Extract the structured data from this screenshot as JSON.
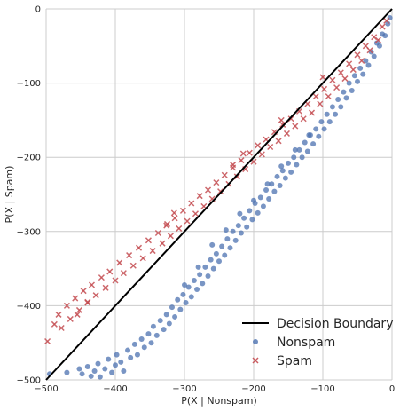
{
  "chart_data": {
    "type": "scatter",
    "title": "",
    "xlabel": "P(X | Nonspam)",
    "ylabel": "P(X | Spam)",
    "xlim": [
      -500,
      0
    ],
    "ylim": [
      -500,
      0
    ],
    "xticks": [
      -500,
      -400,
      -300,
      -200,
      -100,
      0
    ],
    "yticks": [
      -500,
      -400,
      -300,
      -200,
      -100,
      0
    ],
    "xtick_labels": [
      "−500",
      "−400",
      "−300",
      "−200",
      "−100",
      "0"
    ],
    "ytick_labels": [
      "−500",
      "−400",
      "−300",
      "−200",
      "−100",
      "0"
    ],
    "grid": true,
    "legend_position": "bottom-right",
    "legend": [
      "Decision Boundary",
      "Nonspam",
      "Spam"
    ],
    "decision_boundary": {
      "name": "Decision Boundary",
      "color": "#000000",
      "x": [
        -500,
        0
      ],
      "y": [
        -500,
        0
      ]
    },
    "series": [
      {
        "name": "Nonspam",
        "marker": "circle",
        "color": "#4c72b0",
        "points": [
          [
            -495,
            -492
          ],
          [
            -470,
            -490
          ],
          [
            -452,
            -485
          ],
          [
            -448,
            -492
          ],
          [
            -440,
            -482
          ],
          [
            -435,
            -495
          ],
          [
            -430,
            -488
          ],
          [
            -425,
            -478
          ],
          [
            -422,
            -496
          ],
          [
            -415,
            -485
          ],
          [
            -410,
            -472
          ],
          [
            -405,
            -490
          ],
          [
            -400,
            -480
          ],
          [
            -398,
            -466
          ],
          [
            -392,
            -476
          ],
          [
            -388,
            -488
          ],
          [
            -382,
            -460
          ],
          [
            -378,
            -470
          ],
          [
            -372,
            -452
          ],
          [
            -368,
            -466
          ],
          [
            -362,
            -445
          ],
          [
            -358,
            -456
          ],
          [
            -352,
            -438
          ],
          [
            -348,
            -450
          ],
          [
            -345,
            -428
          ],
          [
            -340,
            -440
          ],
          [
            -335,
            -420
          ],
          [
            -330,
            -432
          ],
          [
            -326,
            -412
          ],
          [
            -322,
            -424
          ],
          [
            -318,
            -402
          ],
          [
            -314,
            -415
          ],
          [
            -310,
            -392
          ],
          [
            -306,
            -405
          ],
          [
            -302,
            -385
          ],
          [
            -298,
            -396
          ],
          [
            -294,
            -375
          ],
          [
            -290,
            -388
          ],
          [
            -286,
            -366
          ],
          [
            -282,
            -378
          ],
          [
            -278,
            -358
          ],
          [
            -274,
            -370
          ],
          [
            -270,
            -348
          ],
          [
            -266,
            -360
          ],
          [
            -262,
            -338
          ],
          [
            -258,
            -350
          ],
          [
            -254,
            -330
          ],
          [
            -250,
            -340
          ],
          [
            -246,
            -320
          ],
          [
            -242,
            -332
          ],
          [
            -238,
            -310
          ],
          [
            -234,
            -322
          ],
          [
            -230,
            -300
          ],
          [
            -226,
            -312
          ],
          [
            -222,
            -292
          ],
          [
            -218,
            -302
          ],
          [
            -214,
            -282
          ],
          [
            -210,
            -294
          ],
          [
            -206,
            -272
          ],
          [
            -202,
            -284
          ],
          [
            -198,
            -262
          ],
          [
            -194,
            -275
          ],
          [
            -190,
            -254
          ],
          [
            -186,
            -266
          ],
          [
            -182,
            -244
          ],
          [
            -178,
            -256
          ],
          [
            -174,
            -236
          ],
          [
            -170,
            -246
          ],
          [
            -166,
            -226
          ],
          [
            -162,
            -238
          ],
          [
            -158,
            -218
          ],
          [
            -154,
            -228
          ],
          [
            -150,
            -208
          ],
          [
            -146,
            -220
          ],
          [
            -142,
            -200
          ],
          [
            -138,
            -210
          ],
          [
            -134,
            -190
          ],
          [
            -130,
            -200
          ],
          [
            -126,
            -180
          ],
          [
            -122,
            -192
          ],
          [
            -118,
            -170
          ],
          [
            -114,
            -182
          ],
          [
            -110,
            -162
          ],
          [
            -106,
            -172
          ],
          [
            -102,
            -152
          ],
          [
            -98,
            -162
          ],
          [
            -94,
            -142
          ],
          [
            -90,
            -152
          ],
          [
            -86,
            -132
          ],
          [
            -82,
            -142
          ],
          [
            -78,
            -122
          ],
          [
            -74,
            -132
          ],
          [
            -70,
            -112
          ],
          [
            -66,
            -120
          ],
          [
            -62,
            -100
          ],
          [
            -58,
            -110
          ],
          [
            -54,
            -90
          ],
          [
            -50,
            -98
          ],
          [
            -46,
            -80
          ],
          [
            -42,
            -88
          ],
          [
            -38,
            -70
          ],
          [
            -34,
            -76
          ],
          [
            -30,
            -58
          ],
          [
            -26,
            -64
          ],
          [
            -22,
            -46
          ],
          [
            -18,
            -50
          ],
          [
            -14,
            -34
          ],
          [
            -10,
            -36
          ],
          [
            -6,
            -20
          ],
          [
            -3,
            -12
          ],
          [
            -300,
            -372
          ],
          [
            -280,
            -348
          ],
          [
            -260,
            -318
          ],
          [
            -240,
            -298
          ],
          [
            -220,
            -276
          ],
          [
            -200,
            -258
          ],
          [
            -180,
            -236
          ],
          [
            -160,
            -212
          ],
          [
            -140,
            -190
          ],
          [
            -120,
            -170
          ]
        ]
      },
      {
        "name": "Spam",
        "marker": "x",
        "color": "#c44e52",
        "points": [
          [
            -498,
            -448
          ],
          [
            -488,
            -425
          ],
          [
            -482,
            -412
          ],
          [
            -478,
            -430
          ],
          [
            -470,
            -400
          ],
          [
            -465,
            -418
          ],
          [
            -458,
            -390
          ],
          [
            -452,
            -406
          ],
          [
            -446,
            -380
          ],
          [
            -440,
            -396
          ],
          [
            -434,
            -372
          ],
          [
            -428,
            -386
          ],
          [
            -420,
            -362
          ],
          [
            -414,
            -376
          ],
          [
            -408,
            -354
          ],
          [
            -400,
            -366
          ],
          [
            -394,
            -342
          ],
          [
            -388,
            -356
          ],
          [
            -380,
            -332
          ],
          [
            -374,
            -346
          ],
          [
            -366,
            -322
          ],
          [
            -360,
            -336
          ],
          [
            -352,
            -312
          ],
          [
            -346,
            -326
          ],
          [
            -338,
            -302
          ],
          [
            -332,
            -316
          ],
          [
            -326,
            -292
          ],
          [
            -320,
            -306
          ],
          [
            -314,
            -282
          ],
          [
            -308,
            -296
          ],
          [
            -302,
            -272
          ],
          [
            -296,
            -286
          ],
          [
            -290,
            -262
          ],
          [
            -284,
            -276
          ],
          [
            -278,
            -252
          ],
          [
            -272,
            -266
          ],
          [
            -266,
            -244
          ],
          [
            -260,
            -256
          ],
          [
            -254,
            -234
          ],
          [
            -248,
            -246
          ],
          [
            -242,
            -224
          ],
          [
            -236,
            -236
          ],
          [
            -230,
            -214
          ],
          [
            -224,
            -226
          ],
          [
            -218,
            -204
          ],
          [
            -212,
            -216
          ],
          [
            -206,
            -194
          ],
          [
            -200,
            -206
          ],
          [
            -194,
            -184
          ],
          [
            -188,
            -196
          ],
          [
            -182,
            -176
          ],
          [
            -176,
            -186
          ],
          [
            -170,
            -166
          ],
          [
            -164,
            -178
          ],
          [
            -158,
            -156
          ],
          [
            -152,
            -168
          ],
          [
            -146,
            -148
          ],
          [
            -140,
            -158
          ],
          [
            -134,
            -138
          ],
          [
            -128,
            -148
          ],
          [
            -122,
            -128
          ],
          [
            -116,
            -140
          ],
          [
            -110,
            -118
          ],
          [
            -104,
            -128
          ],
          [
            -98,
            -108
          ],
          [
            -92,
            -118
          ],
          [
            -86,
            -96
          ],
          [
            -80,
            -106
          ],
          [
            -74,
            -86
          ],
          [
            -68,
            -94
          ],
          [
            -62,
            -74
          ],
          [
            -56,
            -82
          ],
          [
            -50,
            -62
          ],
          [
            -44,
            -70
          ],
          [
            -38,
            -50
          ],
          [
            -32,
            -56
          ],
          [
            -26,
            -38
          ],
          [
            -20,
            -42
          ],
          [
            -14,
            -24
          ],
          [
            -8,
            -16
          ],
          [
            -455,
            -412
          ],
          [
            -440,
            -395
          ],
          [
            -325,
            -290
          ],
          [
            -315,
            -275
          ],
          [
            -230,
            -210
          ],
          [
            -215,
            -195
          ],
          [
            -160,
            -150
          ],
          [
            -100,
            -92
          ]
        ]
      }
    ]
  }
}
